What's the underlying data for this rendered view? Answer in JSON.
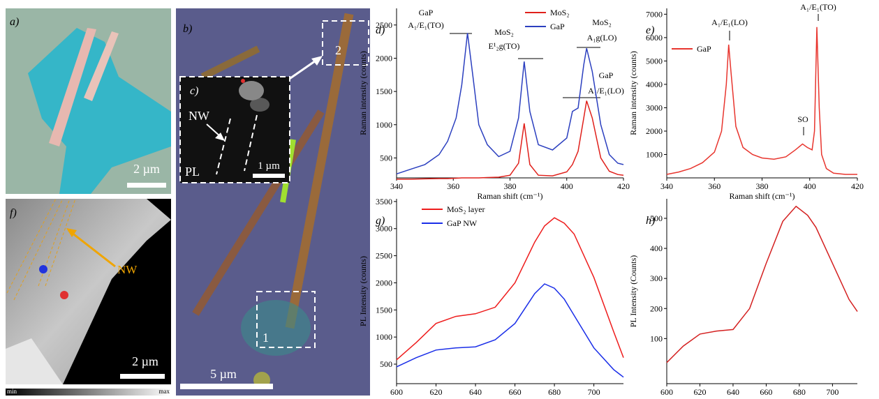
{
  "panels": {
    "a": {
      "label": "a)",
      "scale_bar": "2 µm"
    },
    "b": {
      "label": "b)",
      "scale_bar": "5 µm",
      "box_labels": [
        "2",
        "1"
      ]
    },
    "c": {
      "label": "c)",
      "annotations": [
        "NW",
        "PL"
      ],
      "scale_bar": "1 µm"
    },
    "f": {
      "label": "f)",
      "annotation": "NW",
      "scale_bar": "2 µm",
      "colorbar": [
        "min",
        "max"
      ]
    }
  },
  "chart_data": [
    {
      "type": "line",
      "panel_label": "d)",
      "xlabel": "Raman shift (cm⁻¹)",
      "ylabel": "Raman intensity (counts)",
      "x": [
        340,
        345,
        350,
        355,
        358,
        361,
        363,
        365,
        367,
        369,
        372,
        376,
        380,
        383,
        385,
        387,
        390,
        395,
        400,
        402,
        404,
        406,
        407,
        409,
        412,
        415,
        418,
        420
      ],
      "series": [
        {
          "name": "MoS₂",
          "color": "#e0201b",
          "values": [
            180,
            180,
            185,
            190,
            190,
            195,
            200,
            200,
            200,
            200,
            205,
            210,
            240,
            420,
            1020,
            400,
            240,
            230,
            290,
            400,
            600,
            1100,
            1360,
            1100,
            500,
            300,
            250,
            240
          ]
        },
        {
          "name": "GaP",
          "color": "#2b3fbf",
          "values": [
            260,
            330,
            400,
            550,
            750,
            1100,
            1600,
            2380,
            1700,
            1000,
            700,
            520,
            600,
            1100,
            1950,
            1200,
            700,
            620,
            800,
            1200,
            1250,
            1900,
            2150,
            1800,
            1000,
            550,
            420,
            400
          ]
        }
      ],
      "xlim": [
        340,
        420
      ],
      "ylim": [
        200,
        2750
      ],
      "xticks": [
        340,
        360,
        380,
        400,
        420
      ],
      "yticks": [
        500,
        1000,
        1500,
        2000,
        2500
      ],
      "annotations": [
        "GaP",
        "A₁/E₁(TO)",
        "MoS₂",
        "E¹₂g(TO)",
        "MoS₂",
        "A₁g(LO)",
        "GaP",
        "A₁/E₁(LO)"
      ]
    },
    {
      "type": "line",
      "panel_label": "e)",
      "xlabel": "Raman shift (cm⁻¹)",
      "ylabel": "Raman intensity (counts)",
      "x": [
        340,
        345,
        350,
        355,
        360,
        363,
        365,
        366,
        367,
        369,
        372,
        376,
        380,
        385,
        390,
        394,
        397,
        399,
        401,
        402,
        403,
        404,
        405,
        407,
        410,
        415,
        420
      ],
      "series": [
        {
          "name": "GaP",
          "color": "#e8352e",
          "values": [
            150,
            250,
            400,
            650,
            1100,
            2000,
            4000,
            5700,
            4500,
            2200,
            1300,
            1000,
            850,
            800,
            900,
            1200,
            1450,
            1300,
            1200,
            2000,
            6450,
            3000,
            1000,
            400,
            200,
            150,
            150
          ]
        }
      ],
      "xlim": [
        340,
        420
      ],
      "ylim": [
        0,
        7250
      ],
      "xticks": [
        340,
        360,
        380,
        400,
        420
      ],
      "yticks": [
        1000,
        2000,
        3000,
        4000,
        5000,
        6000,
        7000
      ],
      "annotations": [
        "A₁/E₁(LO)",
        "A₁/E₁(TO)",
        "SO"
      ]
    },
    {
      "type": "line",
      "panel_label": "g)",
      "xlabel": "Wavelength (nm)",
      "ylabel": "PL Intensity (counts)",
      "x": [
        600,
        610,
        620,
        630,
        640,
        650,
        660,
        670,
        675,
        680,
        685,
        690,
        700,
        710,
        715
      ],
      "series": [
        {
          "name": "MoS₂ layer",
          "color": "#ee1c1c",
          "values": [
            580,
            900,
            1250,
            1380,
            1430,
            1550,
            2000,
            2750,
            3050,
            3200,
            3100,
            2900,
            2100,
            1100,
            620
          ]
        },
        {
          "name": "GaP NW",
          "color": "#1a2ee8",
          "values": [
            450,
            620,
            760,
            800,
            820,
            950,
            1250,
            1800,
            1980,
            1900,
            1700,
            1400,
            800,
            400,
            260
          ]
        }
      ],
      "xlim": [
        600,
        715
      ],
      "ylim": [
        140,
        3550
      ],
      "xticks": [
        600,
        620,
        640,
        660,
        680,
        700
      ],
      "yticks": [
        500,
        1000,
        1500,
        2000,
        2500,
        3000,
        3500
      ],
      "annotations": []
    },
    {
      "type": "line",
      "panel_label": "h)",
      "xlabel": "Wavelength (nm)",
      "ylabel": "PL Intensity (Counts)",
      "x": [
        600,
        610,
        620,
        630,
        640,
        650,
        660,
        670,
        678,
        685,
        690,
        700,
        710,
        715
      ],
      "series": [
        {
          "color": "#d42020",
          "values": [
            20,
            75,
            115,
            125,
            130,
            200,
            350,
            490,
            540,
            510,
            470,
            350,
            230,
            190
          ]
        }
      ],
      "xlim": [
        600,
        715
      ],
      "ylim": [
        -50,
        565
      ],
      "xticks": [
        600,
        620,
        640,
        660,
        680,
        700
      ],
      "yticks": [
        100,
        200,
        300,
        400,
        500
      ],
      "annotations": []
    }
  ]
}
